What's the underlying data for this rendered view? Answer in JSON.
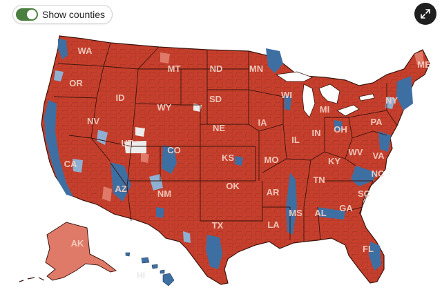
{
  "toggle": {
    "label": "Show counties",
    "on": true
  },
  "expand_button": {
    "icon": "expand-icon"
  },
  "colors": {
    "toggle_on": "#4a7f3f",
    "republican": "#c53f2c",
    "republican_light": "#e07a68",
    "democrat": "#3e6fa3",
    "democrat_light": "#8fb0d2",
    "no_data": "#ececec",
    "border": "#4a1a12",
    "label": "#f3d0c4"
  },
  "map": {
    "state_labels": [
      {
        "abbr": "WA",
        "party": "R"
      },
      {
        "abbr": "OR",
        "party": "R"
      },
      {
        "abbr": "CA",
        "party": "D"
      },
      {
        "abbr": "NV",
        "party": "R"
      },
      {
        "abbr": "ID",
        "party": "R"
      },
      {
        "abbr": "MT",
        "party": "R"
      },
      {
        "abbr": "WY",
        "party": "R"
      },
      {
        "abbr": "UT",
        "party": "R"
      },
      {
        "abbr": "AZ",
        "party": "R"
      },
      {
        "abbr": "CO",
        "party": "R"
      },
      {
        "abbr": "NM",
        "party": "R"
      },
      {
        "abbr": "ND",
        "party": "R"
      },
      {
        "abbr": "SD",
        "party": "R"
      },
      {
        "abbr": "NE",
        "party": "R"
      },
      {
        "abbr": "KS",
        "party": "R"
      },
      {
        "abbr": "OK",
        "party": "R"
      },
      {
        "abbr": "TX",
        "party": "R"
      },
      {
        "abbr": "MN",
        "party": "R"
      },
      {
        "abbr": "IA",
        "party": "R"
      },
      {
        "abbr": "MO",
        "party": "R"
      },
      {
        "abbr": "AR",
        "party": "R"
      },
      {
        "abbr": "LA",
        "party": "R"
      },
      {
        "abbr": "WI",
        "party": "R"
      },
      {
        "abbr": "IL",
        "party": "R"
      },
      {
        "abbr": "MI",
        "party": "R"
      },
      {
        "abbr": "IN",
        "party": "R"
      },
      {
        "abbr": "OH",
        "party": "R"
      },
      {
        "abbr": "KY",
        "party": "R"
      },
      {
        "abbr": "TN",
        "party": "R"
      },
      {
        "abbr": "MS",
        "party": "R"
      },
      {
        "abbr": "AL",
        "party": "R"
      },
      {
        "abbr": "GA",
        "party": "R"
      },
      {
        "abbr": "FL",
        "party": "R"
      },
      {
        "abbr": "SC",
        "party": "R"
      },
      {
        "abbr": "NC",
        "party": "R"
      },
      {
        "abbr": "VA",
        "party": "R"
      },
      {
        "abbr": "WV",
        "party": "R"
      },
      {
        "abbr": "PA",
        "party": "R"
      },
      {
        "abbr": "NY",
        "party": "R"
      },
      {
        "abbr": "ME",
        "party": "R"
      },
      {
        "abbr": "AK",
        "party": "R"
      },
      {
        "abbr": "HI",
        "party": "D"
      }
    ]
  }
}
